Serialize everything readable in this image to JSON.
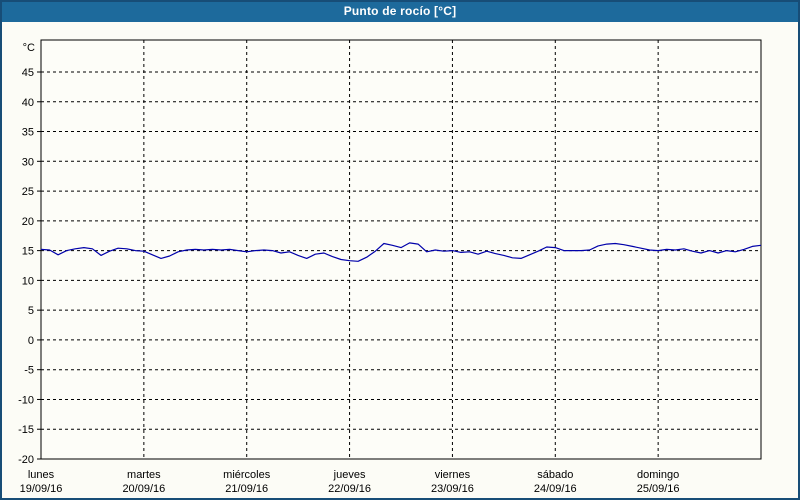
{
  "window": {
    "title": "Punto de rocío [°C]"
  },
  "colors": {
    "titlebar_bg": "#1d6a9c",
    "titlebar_text": "#ffffff",
    "frame_border": "#174d77",
    "panel_bg": "#fcfcf6",
    "plot_bg": "#fdfdf8",
    "grid_color": "#000000",
    "line_color": "#0000aa"
  },
  "chart_data": {
    "type": "line",
    "title": "Punto de rocío [°C]",
    "ylabel": "°C",
    "grid": "dashed",
    "legend": "none",
    "y_axis": {
      "unit": "°C",
      "min": -20,
      "max": 45,
      "tick_step": 5,
      "ticks": [
        45,
        40,
        35,
        30,
        25,
        20,
        15,
        10,
        5,
        0,
        -5,
        -10,
        -15,
        -20
      ]
    },
    "x_axis": {
      "days": [
        {
          "name": "lunes",
          "date": "19/09/16"
        },
        {
          "name": "martes",
          "date": "20/09/16"
        },
        {
          "name": "miércoles",
          "date": "21/09/16"
        },
        {
          "name": "jueves",
          "date": "22/09/16"
        },
        {
          "name": "viernes",
          "date": "23/09/16"
        },
        {
          "name": "sábado",
          "date": "24/09/16"
        },
        {
          "name": "domingo",
          "date": "25/09/16"
        }
      ]
    },
    "series": [
      {
        "name": "Punto de rocío",
        "color": "#0000aa",
        "x_start_hours": 0,
        "x_step_hours": 2,
        "values": [
          15.2,
          15.1,
          14.3,
          15.0,
          15.3,
          15.5,
          15.3,
          14.2,
          14.9,
          15.4,
          15.3,
          15.0,
          14.9,
          14.3,
          13.7,
          14.1,
          14.8,
          15.1,
          15.2,
          15.1,
          15.2,
          15.1,
          15.2,
          15.0,
          14.8,
          15.0,
          15.1,
          15.0,
          14.6,
          14.8,
          14.2,
          13.7,
          14.4,
          14.6,
          14.0,
          13.5,
          13.3,
          13.2,
          13.9,
          14.9,
          16.2,
          15.9,
          15.5,
          16.3,
          16.1,
          14.8,
          15.1,
          14.9,
          15.0,
          14.7,
          14.8,
          14.4,
          14.9,
          14.5,
          14.2,
          13.8,
          13.7,
          14.3,
          14.9,
          15.6,
          15.5,
          15.0,
          15.0,
          15.0,
          15.1,
          15.8,
          16.1,
          16.2,
          16.0,
          15.7,
          15.4,
          15.1,
          15.0,
          15.2,
          15.1,
          15.3,
          14.9,
          14.6,
          15.0,
          14.6,
          15.0,
          14.8,
          15.2,
          15.7,
          15.9
        ]
      }
    ]
  }
}
